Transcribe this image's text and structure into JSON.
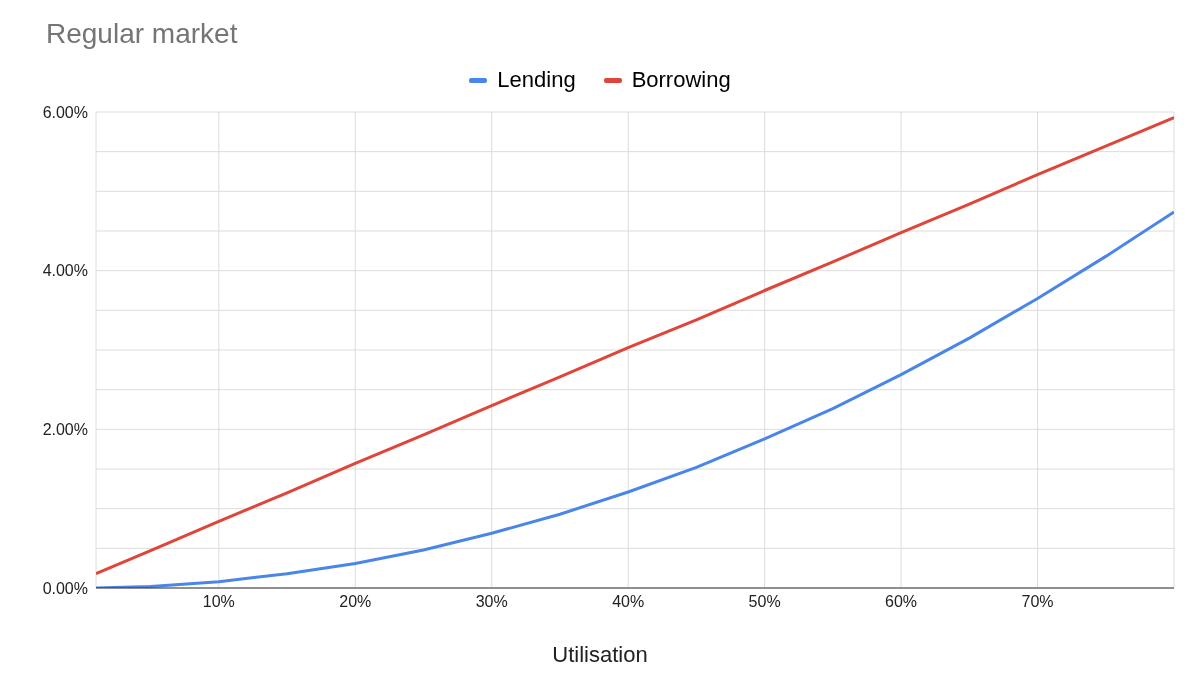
{
  "chart_data": {
    "type": "line",
    "title": "Regular market",
    "xlabel": "Utilisation",
    "x": [
      1,
      5,
      10,
      15,
      20,
      25,
      30,
      35,
      40,
      45,
      50,
      55,
      60,
      65,
      70,
      75,
      80
    ],
    "series": [
      {
        "name": "Lending",
        "color": "#4a86e8",
        "values": [
          0.0,
          0.02,
          0.08,
          0.18,
          0.31,
          0.48,
          0.69,
          0.93,
          1.21,
          1.52,
          1.88,
          2.26,
          2.69,
          3.15,
          3.65,
          4.18,
          4.74
        ]
      },
      {
        "name": "Borrowing",
        "color": "#e0453a",
        "values": [
          0.18,
          0.47,
          0.84,
          1.2,
          1.57,
          1.93,
          2.3,
          2.66,
          3.03,
          3.38,
          3.75,
          4.11,
          4.48,
          4.84,
          5.21,
          5.57,
          5.93
        ]
      }
    ],
    "xlim": [
      1,
      80
    ],
    "xticks": [
      {
        "value": 10,
        "label": "10%"
      },
      {
        "value": 20,
        "label": "20%"
      },
      {
        "value": 30,
        "label": "30%"
      },
      {
        "value": 40,
        "label": "40%"
      },
      {
        "value": 50,
        "label": "50%"
      },
      {
        "value": 60,
        "label": "60%"
      },
      {
        "value": 70,
        "label": "70%"
      }
    ],
    "ylim": [
      0,
      6
    ],
    "yticks": [
      {
        "value": 0,
        "label": "0.00%"
      },
      {
        "value": 0.5,
        "label": null
      },
      {
        "value": 1,
        "label": null
      },
      {
        "value": 1.5,
        "label": null
      },
      {
        "value": 2,
        "label": "2.00%"
      },
      {
        "value": 2.5,
        "label": null
      },
      {
        "value": 3,
        "label": null
      },
      {
        "value": 3.5,
        "label": null
      },
      {
        "value": 4,
        "label": "4.00%"
      },
      {
        "value": 4.5,
        "label": null
      },
      {
        "value": 5,
        "label": null
      },
      {
        "value": 5.5,
        "label": null
      },
      {
        "value": 6,
        "label": "6.00%"
      }
    ],
    "grid": true,
    "legend": "top",
    "marker": "none",
    "line_style": "solid"
  }
}
